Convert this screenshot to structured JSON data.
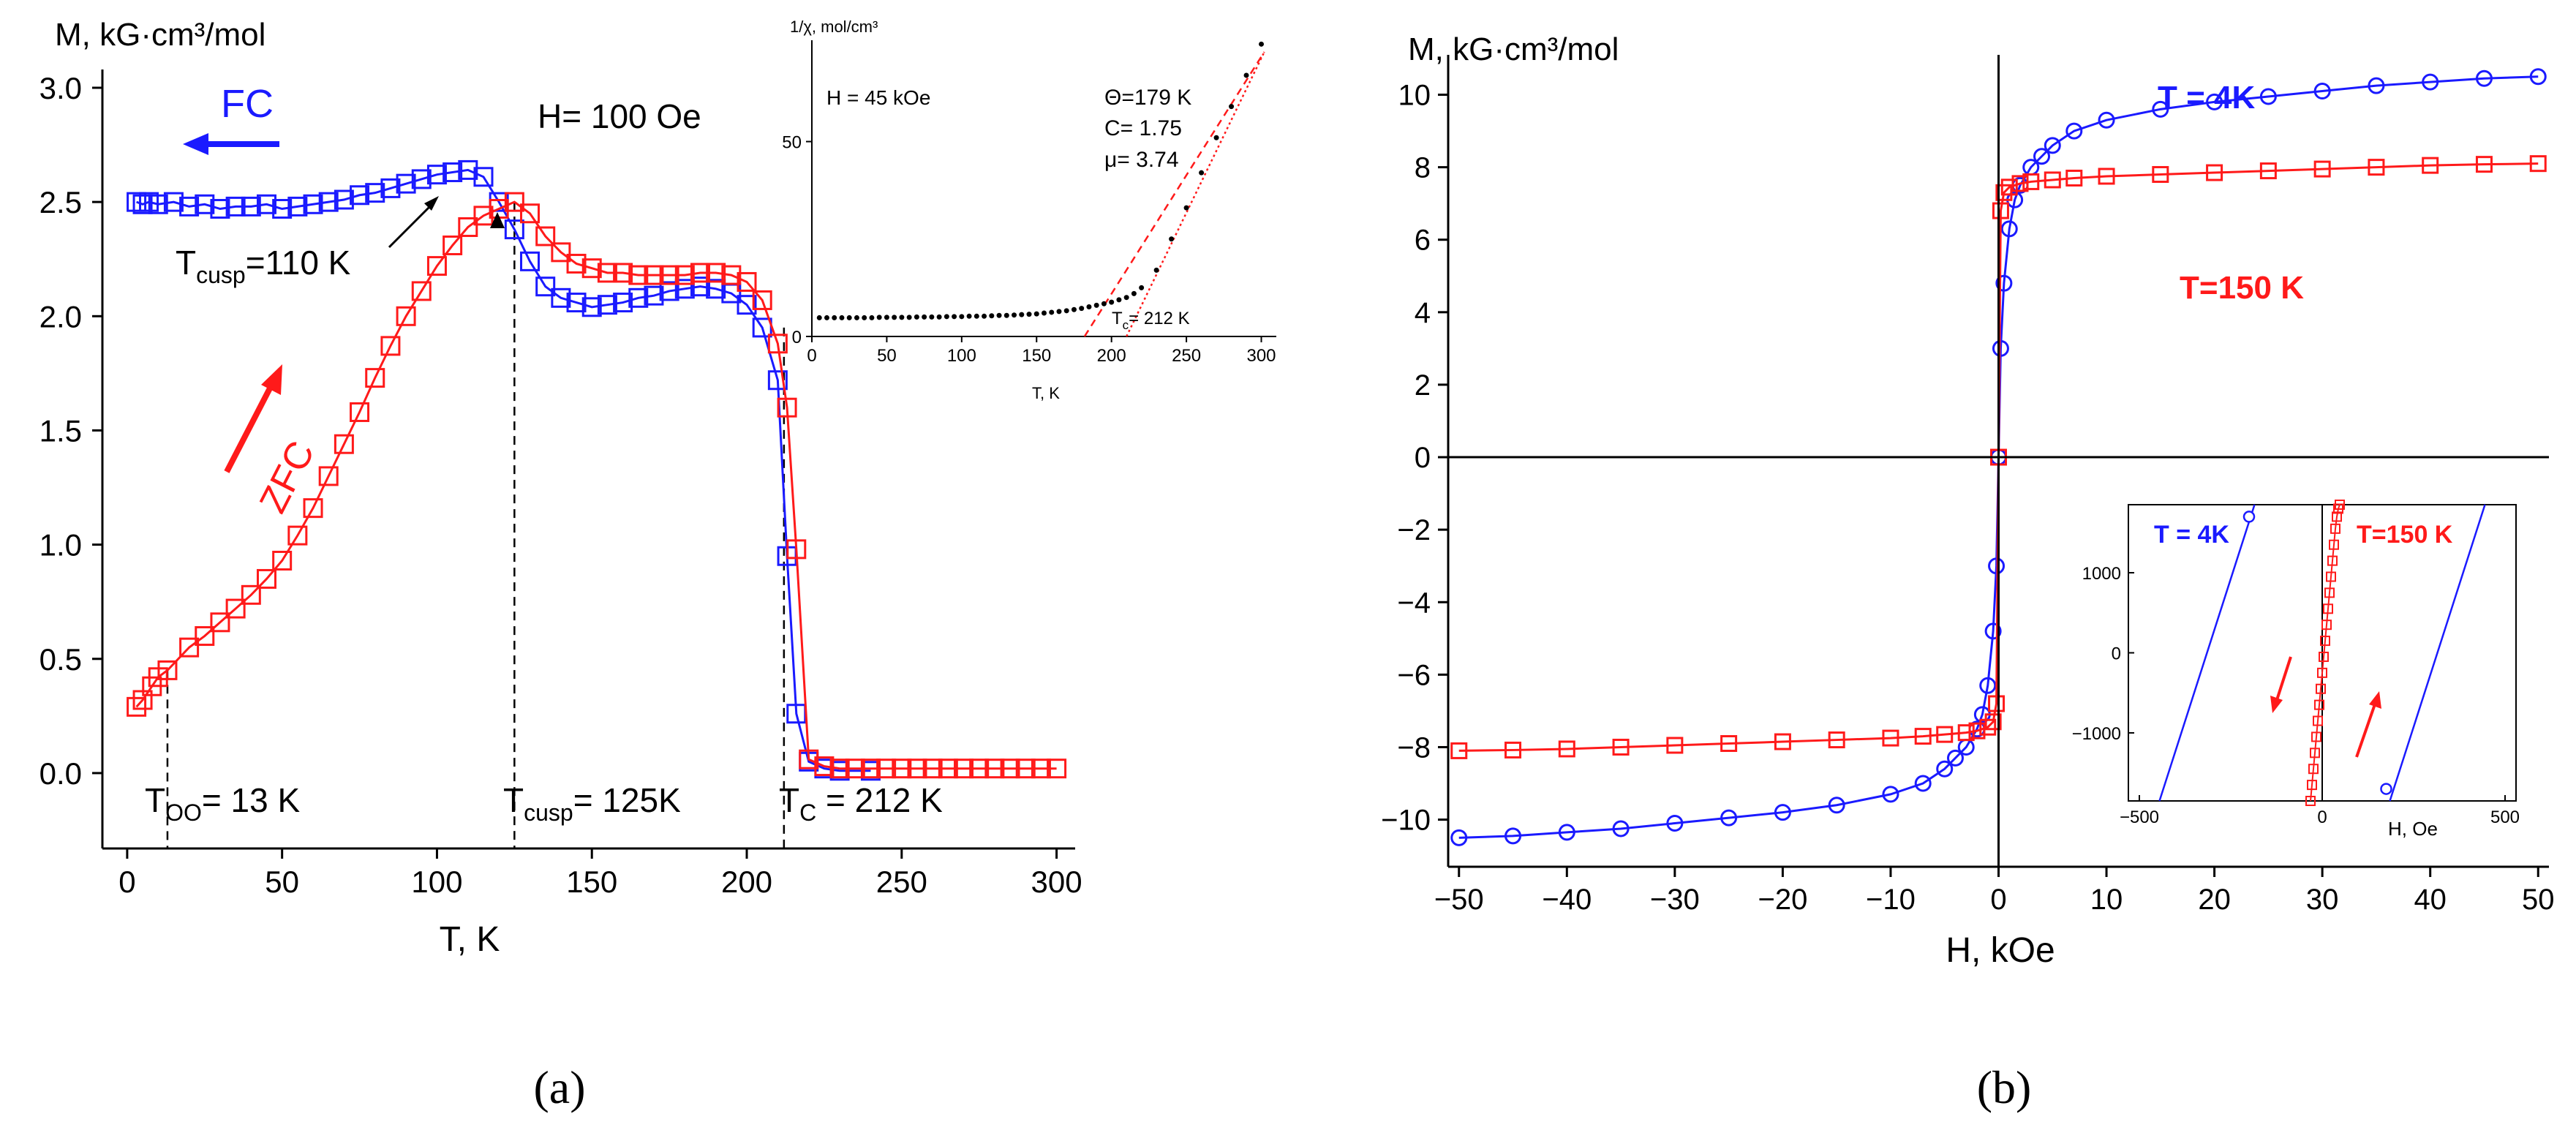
{
  "colors": {
    "fc": "#1a1aff",
    "zfc": "#ff1a1a",
    "axis": "#000000",
    "white": "#ffffff"
  },
  "labels": {
    "panel_a": "(a)",
    "panel_b": "(b)"
  },
  "chart_data": [
    {
      "type": "scatter",
      "panel": "a",
      "ylabel": "M, kG·cm³/mol",
      "xlabel": "T, K",
      "xlim": [
        -8,
        306
      ],
      "ylim": [
        -0.33,
        3.08
      ],
      "xticks": [
        0,
        50,
        100,
        150,
        200,
        250,
        300
      ],
      "yticks": [
        0.0,
        0.5,
        1.0,
        1.5,
        2.0,
        2.5,
        3.0
      ],
      "ytick_labels": [
        "0.0",
        "0.5",
        "1.0",
        "1.5",
        "2.0",
        "2.5",
        "3.0"
      ],
      "annotations": {
        "field": "H= 100 Oe",
        "fc": "FC",
        "zfc": "ZFC",
        "tcusp110": "T",
        "tcusp110_sub": "cusp",
        "tcusp110_val": "=110 K",
        "too": "T",
        "too_sub": "OO",
        "too_val": "= 13 K",
        "tcusp125": "T",
        "tcusp125_sub": "cusp",
        "tcusp125_val": "= 125K",
        "tc": "T",
        "tc_sub": "C",
        "tc_val": " = 212 K"
      },
      "vlines": [
        13,
        125,
        212
      ],
      "series": [
        {
          "name": "FC",
          "marker": "square-open",
          "x": [
            3,
            5,
            7,
            10,
            15,
            20,
            25,
            30,
            35,
            40,
            45,
            50,
            55,
            60,
            65,
            70,
            75,
            80,
            85,
            90,
            95,
            100,
            105,
            110,
            115,
            120,
            125,
            130,
            135,
            140,
            145,
            150,
            155,
            160,
            165,
            170,
            175,
            180,
            185,
            190,
            195,
            200,
            205,
            210,
            213,
            216,
            220,
            225,
            230,
            240
          ],
          "y": [
            2.5,
            2.49,
            2.5,
            2.49,
            2.5,
            2.48,
            2.49,
            2.47,
            2.48,
            2.48,
            2.49,
            2.47,
            2.48,
            2.49,
            2.5,
            2.51,
            2.53,
            2.54,
            2.56,
            2.58,
            2.6,
            2.62,
            2.63,
            2.64,
            2.61,
            2.5,
            2.38,
            2.24,
            2.13,
            2.08,
            2.06,
            2.04,
            2.05,
            2.06,
            2.08,
            2.09,
            2.11,
            2.12,
            2.13,
            2.12,
            2.1,
            2.05,
            1.95,
            1.72,
            0.95,
            0.26,
            0.05,
            0.02,
            0.01,
            0.01
          ]
        },
        {
          "name": "ZFC",
          "marker": "square-open",
          "x": [
            3,
            5,
            8,
            10,
            13,
            20,
            25,
            30,
            35,
            40,
            45,
            50,
            55,
            60,
            65,
            70,
            75,
            80,
            85,
            90,
            95,
            100,
            105,
            110,
            115,
            120,
            125,
            130,
            135,
            140,
            145,
            150,
            155,
            160,
            165,
            170,
            175,
            180,
            185,
            190,
            195,
            200,
            205,
            210,
            213,
            216,
            220,
            225,
            230,
            235,
            240,
            245,
            250,
            255,
            260,
            265,
            270,
            275,
            280,
            285,
            290,
            295,
            300
          ],
          "y": [
            0.29,
            0.32,
            0.38,
            0.42,
            0.45,
            0.55,
            0.6,
            0.66,
            0.72,
            0.78,
            0.85,
            0.93,
            1.04,
            1.16,
            1.3,
            1.44,
            1.58,
            1.73,
            1.87,
            2.0,
            2.11,
            2.22,
            2.31,
            2.39,
            2.44,
            2.47,
            2.5,
            2.45,
            2.35,
            2.28,
            2.23,
            2.21,
            2.19,
            2.19,
            2.18,
            2.18,
            2.18,
            2.18,
            2.19,
            2.19,
            2.18,
            2.15,
            2.07,
            1.88,
            1.6,
            0.98,
            0.06,
            0.03,
            0.02,
            0.02,
            0.02,
            0.02,
            0.02,
            0.02,
            0.02,
            0.02,
            0.02,
            0.02,
            0.02,
            0.02,
            0.02,
            0.02,
            0.02
          ]
        }
      ],
      "inset": {
        "type": "scatter",
        "ylabel": "1/χ, mol/cm³",
        "xlabel": "T, K",
        "xlim": [
          0,
          310
        ],
        "ylim": [
          0,
          76
        ],
        "xticks": [
          0,
          50,
          100,
          150,
          200,
          250,
          300
        ],
        "yticks": [
          0,
          50
        ],
        "annotations": {
          "field": "H = 45 kOe",
          "theta": "Θ=179 K",
          "c": "C= 1.75",
          "mu": "μ= 3.74",
          "tc": "T",
          "tc_sub": "c",
          "tc_val": "= 212 K"
        },
        "points": {
          "x": [
            5,
            10,
            15,
            20,
            25,
            30,
            35,
            40,
            45,
            50,
            55,
            60,
            65,
            70,
            75,
            80,
            85,
            90,
            95,
            100,
            105,
            110,
            115,
            120,
            125,
            130,
            135,
            140,
            145,
            150,
            155,
            160,
            165,
            170,
            175,
            180,
            185,
            190,
            195,
            200,
            205,
            210,
            215,
            220,
            230,
            240,
            250,
            260,
            270,
            280,
            290,
            300
          ],
          "y": [
            4.8,
            4.8,
            4.8,
            4.8,
            4.8,
            4.8,
            4.8,
            4.8,
            4.9,
            4.9,
            4.9,
            4.9,
            4.9,
            5.0,
            5.0,
            5.0,
            5.0,
            5.1,
            5.1,
            5.1,
            5.2,
            5.2,
            5.2,
            5.3,
            5.4,
            5.4,
            5.5,
            5.6,
            5.7,
            5.8,
            6.0,
            6.2,
            6.4,
            6.6,
            6.9,
            7.2,
            7.6,
            8.0,
            8.4,
            8.8,
            9.4,
            10.0,
            11.0,
            12.5,
            17,
            25,
            33,
            42,
            51,
            59,
            67,
            75
          ]
        },
        "fit_dashed": {
          "x": [
            182,
            302
          ],
          "y": [
            0,
            73
          ]
        },
        "fit_dotted": {
          "x": [
            210,
            302
          ],
          "y": [
            0,
            73
          ]
        }
      }
    },
    {
      "type": "line",
      "panel": "b",
      "ylabel": "M, kG·cm³/mol",
      "xlabel": "H, kOe",
      "xlim": [
        -51,
        51
      ],
      "ylim": [
        -11.3,
        11.1
      ],
      "xticks": [
        -50,
        -40,
        -30,
        -20,
        -10,
        0,
        10,
        20,
        30,
        40,
        50
      ],
      "xtick_labels": [
        "−50",
        "−40",
        "−30",
        "−20",
        "−10",
        "0",
        "10",
        "20",
        "30",
        "40",
        "50"
      ],
      "yticks": [
        -10,
        -8,
        -6,
        -4,
        -2,
        0,
        2,
        4,
        6,
        8,
        10
      ],
      "ytick_labels": [
        "−10",
        "−8",
        "−6",
        "−4",
        "−2",
        "0",
        "2",
        "4",
        "6",
        "8",
        "10"
      ],
      "series": [
        {
          "name": "T = 4K",
          "marker": "circle-open",
          "x": [
            -50,
            -45,
            -40,
            -35,
            -30,
            -25,
            -20,
            -15,
            -10,
            -7,
            -5,
            -4,
            -3,
            -2,
            -1.5,
            -1,
            -0.5,
            -0.2,
            0,
            0.2,
            0.5,
            1,
            1.5,
            2,
            3,
            4,
            5,
            7,
            10,
            15,
            20,
            25,
            30,
            35,
            40,
            45,
            50
          ],
          "y": [
            -10.5,
            -10.45,
            -10.35,
            -10.25,
            -10.1,
            -9.95,
            -9.8,
            -9.6,
            -9.3,
            -9.0,
            -8.6,
            -8.3,
            -8.0,
            -7.5,
            -7.1,
            -6.3,
            -4.8,
            -3.0,
            0,
            3.0,
            4.8,
            6.3,
            7.1,
            7.5,
            8.0,
            8.3,
            8.6,
            9.0,
            9.3,
            9.6,
            9.8,
            9.95,
            10.1,
            10.25,
            10.35,
            10.45,
            10.5
          ]
        },
        {
          "name": "T=150 K",
          "marker": "square-open",
          "x": [
            -50,
            -45,
            -40,
            -35,
            -30,
            -25,
            -20,
            -15,
            -10,
            -7,
            -5,
            -3,
            -2,
            -1,
            -0.5,
            -0.2,
            0,
            0.2,
            0.5,
            1,
            2,
            3,
            5,
            7,
            10,
            15,
            20,
            25,
            30,
            35,
            40,
            45,
            50
          ],
          "y": [
            -8.1,
            -8.08,
            -8.05,
            -8.0,
            -7.95,
            -7.9,
            -7.85,
            -7.8,
            -7.75,
            -7.7,
            -7.65,
            -7.6,
            -7.55,
            -7.45,
            -7.3,
            -6.8,
            0,
            6.8,
            7.3,
            7.45,
            7.55,
            7.6,
            7.65,
            7.7,
            7.75,
            7.8,
            7.85,
            7.9,
            7.95,
            8.0,
            8.05,
            8.08,
            8.1
          ]
        }
      ],
      "inset": {
        "type": "line",
        "xlabel": "H, Oe",
        "xlim": [
          -530,
          530
        ],
        "ylim": [
          -1850,
          1850
        ],
        "xticks": [
          -500,
          0,
          500
        ],
        "xtick_labels": [
          "−500",
          "0",
          "500"
        ],
        "yticks": [
          -1000,
          0,
          1000
        ],
        "ytick_labels": [
          "−1000",
          "0",
          "1000"
        ],
        "labels": {
          "t4k": "T = 4K",
          "t150k": "T=150 K"
        },
        "t4k_lines": [
          {
            "x": [
              -445,
              -185
            ],
            "y": [
              -1850,
              1850
            ]
          },
          {
            "x": [
              185,
              445
            ],
            "y": [
              -1850,
              1850
            ]
          }
        ],
        "t4k_points": {
          "x": [
            -200,
            175
          ],
          "y": [
            1700,
            -1700
          ]
        },
        "t150k_points": {
          "x": [
            -32,
            -28,
            -24,
            -20,
            -16,
            -12,
            -8,
            -4,
            0,
            4,
            8,
            12,
            16,
            20,
            24,
            28,
            32,
            36,
            40,
            44,
            48
          ],
          "y": [
            -1850,
            -1650,
            -1450,
            -1250,
            -1050,
            -850,
            -650,
            -450,
            -250,
            -50,
            150,
            350,
            550,
            750,
            950,
            1150,
            1350,
            1550,
            1700,
            1800,
            1850
          ]
        }
      }
    }
  ]
}
